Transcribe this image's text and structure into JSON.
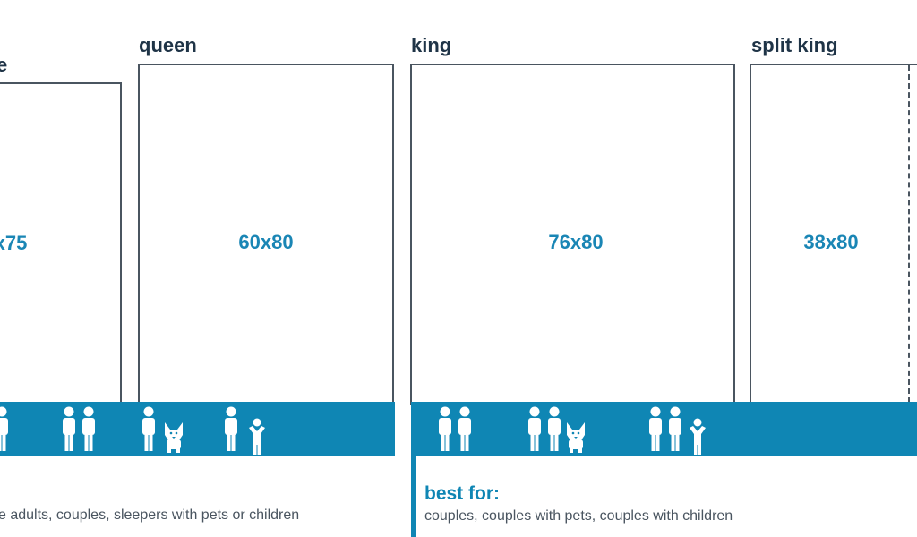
{
  "beds": [
    {
      "name": "e",
      "dims": "x75"
    },
    {
      "name": "queen",
      "dims": "60x80"
    },
    {
      "name": "king",
      "dims": "76x80"
    },
    {
      "name": "split king",
      "dims": "38x80"
    }
  ],
  "best_for": {
    "label": "best for:",
    "left_text": "e adults, couples, sleepers with pets or children",
    "king_text": "couples, couples with pets, couples with children"
  },
  "icons": {
    "adult": "person-icon",
    "child": "child-icon",
    "pet": "dog-icon"
  },
  "colors": {
    "band": "#0f86b4",
    "dims_text": "#1a86b5",
    "title_text": "#1f3447",
    "outline": "#4a5560"
  }
}
